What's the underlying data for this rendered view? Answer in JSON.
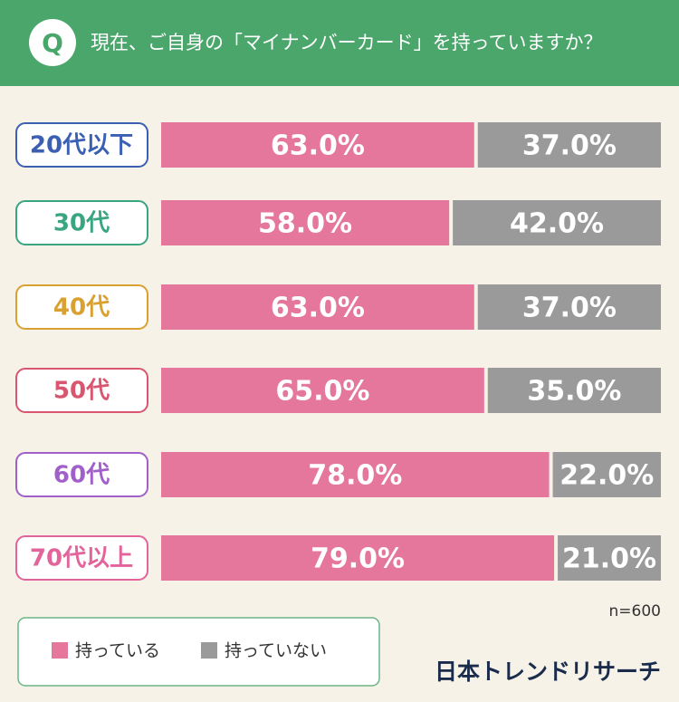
{
  "chart_data": {
    "type": "stacked_bar_horizontal",
    "badge": "Q",
    "title": "現在、ご自身の「マイナンバーカード」を持っていますか？",
    "categories": [
      "20代以下",
      "30代",
      "40代",
      "50代",
      "60代",
      "70代以上"
    ],
    "category_colors": [
      "#3b5fb3",
      "#3aa581",
      "#d8a131",
      "#d8566f",
      "#a15fc9",
      "#e2649a"
    ],
    "xlim": [
      0,
      100
    ],
    "series": [
      {
        "name": "持っている",
        "color": "#e5769c",
        "values": [
          63,
          58,
          63,
          65,
          78,
          79
        ],
        "value_labels": [
          "63.0%",
          "58.0%",
          "63.0%",
          "65.0%",
          "78.0%",
          "79.0%"
        ]
      },
      {
        "name": "持っていない",
        "color": "#9a9a9a",
        "values": [
          37,
          42,
          37,
          35,
          22,
          21
        ],
        "value_labels": [
          "37.0%",
          "42.0%",
          "37.0%",
          "35.0%",
          "22.0%",
          "21.0%"
        ]
      }
    ],
    "note": "n=600",
    "source": "日本トレンドリサーチ"
  }
}
